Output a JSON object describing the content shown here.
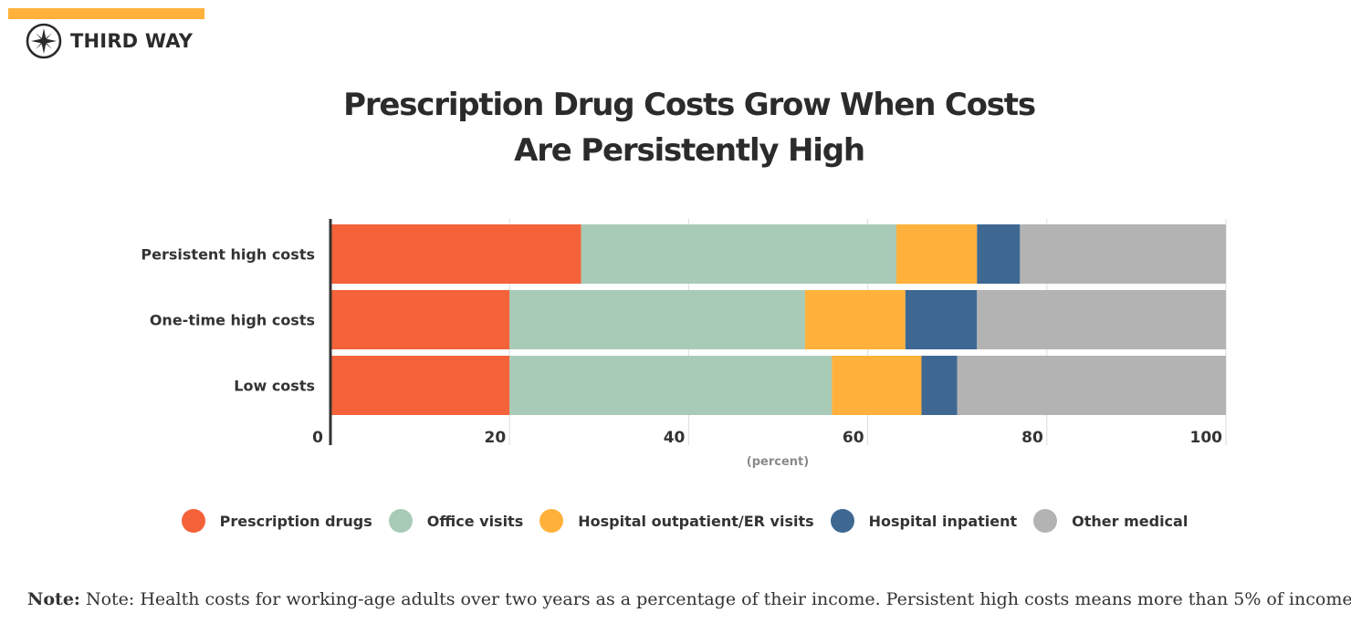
{
  "brand": {
    "name": "THIRD WAY",
    "logo_icon": "compass-icon",
    "accent": "#ffb13b"
  },
  "chart_data": {
    "type": "bar",
    "orientation": "horizontal",
    "stacked": true,
    "title_lines": [
      "Prescription Drug Costs Grow When Costs",
      "Are Persistently High"
    ],
    "categories": [
      "Persistent high costs",
      "One-time high costs",
      "Low costs"
    ],
    "series": [
      {
        "name": "Prescription drugs",
        "color": "#f4623a",
        "values": [
          28,
          20,
          20
        ]
      },
      {
        "name": "Office visits",
        "color": "#a8cbb7",
        "values": [
          35.2,
          33,
          36
        ]
      },
      {
        "name": "Hospital outpatient/ER visits",
        "color": "#ffb13b",
        "values": [
          9,
          11.2,
          10
        ]
      },
      {
        "name": "Hospital inpatient",
        "color": "#3e6892",
        "values": [
          4.8,
          8,
          4
        ]
      },
      {
        "name": "Other medical",
        "color": "#b3b3b3",
        "values": [
          23,
          27.8,
          30
        ]
      }
    ],
    "xlim": [
      0,
      100
    ],
    "xticks": [
      0,
      20,
      40,
      60,
      80,
      100
    ],
    "xlabel": "(percent)",
    "ylabel": "",
    "grid": true,
    "legend_position": "bottom"
  },
  "note": {
    "label": "Note:",
    "text": "Note: Health costs for working-age adults over two years as a percentage of their income. Persistent high costs means  more than 5% of income"
  }
}
